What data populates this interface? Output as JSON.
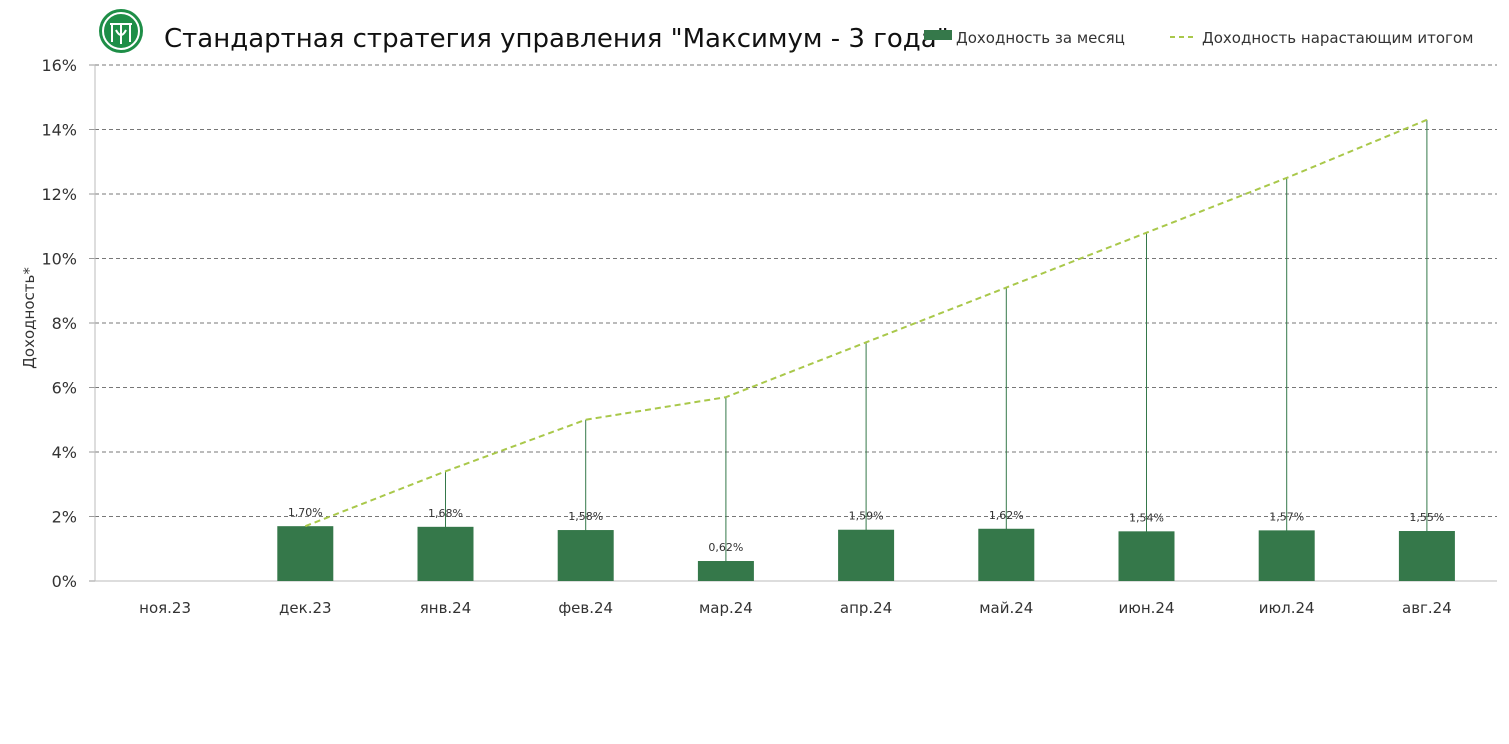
{
  "colors": {
    "bar": "#35784A",
    "line": "#A9C84A",
    "grid": "#777777",
    "logo": "#1E8E47"
  },
  "header": {
    "logo_icon": "company-seal-icon",
    "title": "Стандартная стратегия управления \"Максимум - 3 года\""
  },
  "chart_data": {
    "type": "bar",
    "title": "Стандартная стратегия управления \"Максимум - 3 года\"",
    "ylabel": "Доходность*",
    "xlabel": "",
    "ylim": [
      0,
      16
    ],
    "yticks": [
      0,
      2,
      4,
      6,
      8,
      10,
      12,
      14,
      16
    ],
    "ytick_labels": [
      "0%",
      "2%",
      "4%",
      "6%",
      "8%",
      "10%",
      "12%",
      "14%",
      "16%"
    ],
    "grid": true,
    "legend_position": "top-right",
    "categories": [
      "ноя.23",
      "дек.23",
      "янв.24",
      "фев.24",
      "мар.24",
      "апр.24",
      "май.24",
      "июн.24",
      "июл.24",
      "авг.24"
    ],
    "series": [
      {
        "name": "Доходность за месяц",
        "type": "bar",
        "values": [
          null,
          1.7,
          1.68,
          1.58,
          0.62,
          1.59,
          1.62,
          1.54,
          1.57,
          1.55
        ],
        "labels": [
          "",
          "1,70%",
          "1,68%",
          "1,58%",
          "0,62%",
          "1,59%",
          "1,62%",
          "1,54%",
          "1,57%",
          "1,55%"
        ]
      },
      {
        "name": "Доходность нарастающим итогом",
        "type": "line",
        "style": "dashed",
        "values": [
          null,
          1.7,
          3.4,
          5.0,
          5.7,
          7.4,
          9.1,
          10.8,
          12.5,
          14.3
        ]
      }
    ]
  }
}
